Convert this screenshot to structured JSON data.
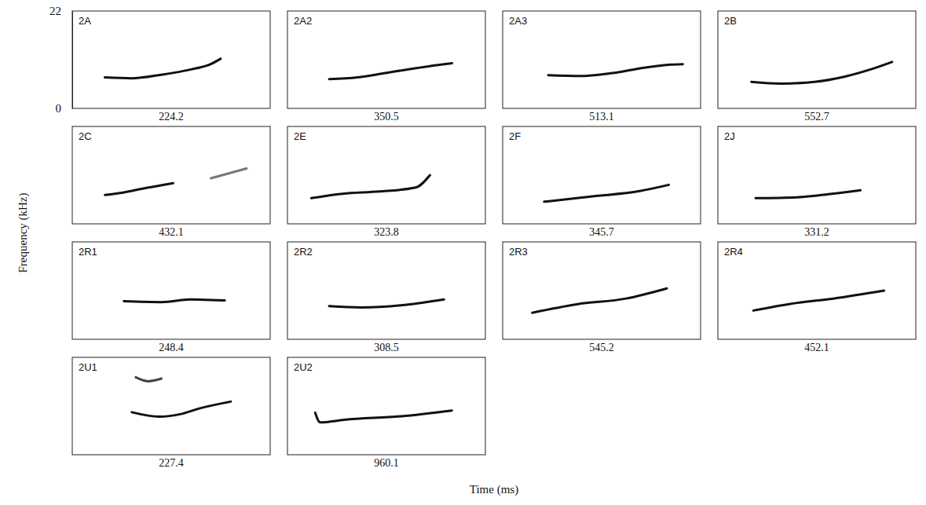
{
  "chart_data": [
    {
      "type": "line",
      "title": "2A",
      "duration": 224.2,
      "ylabel": "Frequency (kHz)",
      "xlabel": "Time (ms)",
      "xlim": [
        0,
        383
      ],
      "ylim": [
        0,
        22
      ],
      "yticks": [
        0,
        22
      ],
      "tick_labels": "y",
      "series": [
        {
          "color": "#111111",
          "x": [
            63,
            115,
            172,
            230,
            268,
            287
          ],
          "values": [
            7.0,
            6.8,
            7.6,
            8.8,
            10.0,
            11.2
          ]
        }
      ]
    },
    {
      "type": "line",
      "title": "2A2",
      "duration": 350.5,
      "xlim": [
        0,
        565
      ],
      "ylim": [
        0,
        22
      ],
      "tick_labels": false,
      "series": [
        {
          "color": "#111111",
          "x": [
            119,
            200,
            280,
            360,
            430,
            469.5
          ],
          "values": [
            6.6,
            7.0,
            8.0,
            9.0,
            9.8,
            10.2
          ]
        }
      ]
    },
    {
      "type": "line",
      "title": "2A3",
      "duration": 513.1,
      "xlim": [
        0,
        755
      ],
      "ylim": [
        0,
        22
      ],
      "tick_labels": false,
      "series": [
        {
          "color": "#111111",
          "x": [
            174,
            300,
            420,
            540,
            640,
            687.1
          ],
          "values": [
            7.5,
            7.3,
            8.0,
            9.2,
            9.9,
            10.0
          ]
        }
      ]
    },
    {
      "type": "line",
      "title": "2B",
      "duration": 552.7,
      "xlim": [
        0,
        778
      ],
      "ylim": [
        0,
        22
      ],
      "tick_labels": false,
      "series": [
        {
          "color": "#111111",
          "x": [
            132,
            250,
            380,
            500,
            600,
            684.7
          ],
          "values": [
            6.0,
            5.6,
            6.0,
            7.2,
            8.8,
            10.5
          ]
        }
      ]
    },
    {
      "type": "line",
      "title": "2C",
      "duration": 432.1,
      "xlim": [
        0,
        604
      ],
      "ylim": [
        0,
        22
      ],
      "tick_labels": false,
      "series": [
        {
          "color": "#111111",
          "x": [
            100,
            151,
            211,
            308
          ],
          "values": [
            6.5,
            7.0,
            7.9,
            9.2
          ]
        },
        {
          "color": "#777777",
          "x": [
            423,
            532
          ],
          "values": [
            10.3,
            12.5
          ]
        }
      ]
    },
    {
      "type": "line",
      "title": "2E",
      "duration": 323.8,
      "xlim": [
        0,
        540
      ],
      "ylim": [
        0,
        22
      ],
      "tick_labels": false,
      "series": [
        {
          "color": "#111111",
          "x": [
            65,
            150,
            250,
            350,
            388.8
          ],
          "values": [
            5.8,
            6.8,
            7.3,
            8.2,
            11.0
          ]
        }
      ]
    },
    {
      "type": "line",
      "title": "2F",
      "duration": 345.7,
      "xlim": [
        0,
        549
      ],
      "ylim": [
        0,
        22
      ],
      "tick_labels": false,
      "series": [
        {
          "color": "#111111",
          "x": [
            115,
            250,
            380,
            460.7
          ],
          "values": [
            5.0,
            6.2,
            7.4,
            8.8
          ]
        }
      ]
    },
    {
      "type": "line",
      "title": "2J",
      "duration": 331.2,
      "xlim": [
        0,
        625
      ],
      "ylim": [
        0,
        22
      ],
      "tick_labels": false,
      "series": [
        {
          "color": "#111111",
          "x": [
            119,
            250,
            360,
            450.2
          ],
          "values": [
            5.8,
            6.0,
            6.8,
            7.6
          ]
        }
      ]
    },
    {
      "type": "line",
      "title": "2R1",
      "duration": 248.4,
      "xlim": [
        0,
        487
      ],
      "ylim": [
        0,
        22
      ],
      "tick_labels": false,
      "series": [
        {
          "color": "#111111",
          "x": [
            127,
            220,
            290,
            375.4
          ],
          "values": [
            8.6,
            8.4,
            9.0,
            8.8
          ]
        }
      ]
    },
    {
      "type": "line",
      "title": "2R2",
      "duration": 308.5,
      "xlim": [
        0,
        532
      ],
      "ylim": [
        0,
        22
      ],
      "tick_labels": false,
      "series": [
        {
          "color": "#111111",
          "x": [
            112,
            200,
            320,
            420.5
          ],
          "values": [
            7.5,
            7.2,
            7.8,
            9.0
          ]
        }
      ]
    },
    {
      "type": "line",
      "title": "2R3",
      "duration": 545.2,
      "xlim": [
        0,
        802
      ],
      "ylim": [
        0,
        22
      ],
      "tick_labels": false,
      "series": [
        {
          "color": "#111111",
          "x": [
            120,
            300,
            500,
            665.2
          ],
          "values": [
            6.0,
            7.9,
            9.2,
            11.5
          ]
        }
      ]
    },
    {
      "type": "line",
      "title": "2R4",
      "duration": 452.1,
      "xlim": [
        0,
        685
      ],
      "ylim": [
        0,
        22
      ],
      "tick_labels": false,
      "series": [
        {
          "color": "#111111",
          "x": [
            123,
            250,
            400,
            575.1
          ],
          "values": [
            6.5,
            8.0,
            9.2,
            11.0
          ]
        }
      ]
    },
    {
      "type": "line",
      "title": "2U1",
      "duration": 227.4,
      "xlim": [
        0,
        455
      ],
      "ylim": [
        0,
        22
      ],
      "tick_labels": false,
      "series": [
        {
          "color": "#111111",
          "x": [
            137,
            200,
            250,
            290,
            364.4
          ],
          "values": [
            9.6,
            8.6,
            9.2,
            10.4,
            12.0
          ]
        },
        {
          "color": "#444444",
          "x": [
            146,
            175,
            205
          ],
          "values": [
            17.5,
            16.6,
            17.2
          ]
        }
      ]
    },
    {
      "type": "line",
      "title": "2U2",
      "duration": 960.1,
      "xlim": [
        0,
        1391
      ],
      "ylim": [
        0,
        22
      ],
      "tick_labels": false,
      "series": [
        {
          "color": "#111111",
          "x": [
            195,
            230,
            400,
            800,
            1155.1
          ],
          "values": [
            9.5,
            7.3,
            7.9,
            8.7,
            10.0
          ]
        }
      ]
    }
  ]
}
